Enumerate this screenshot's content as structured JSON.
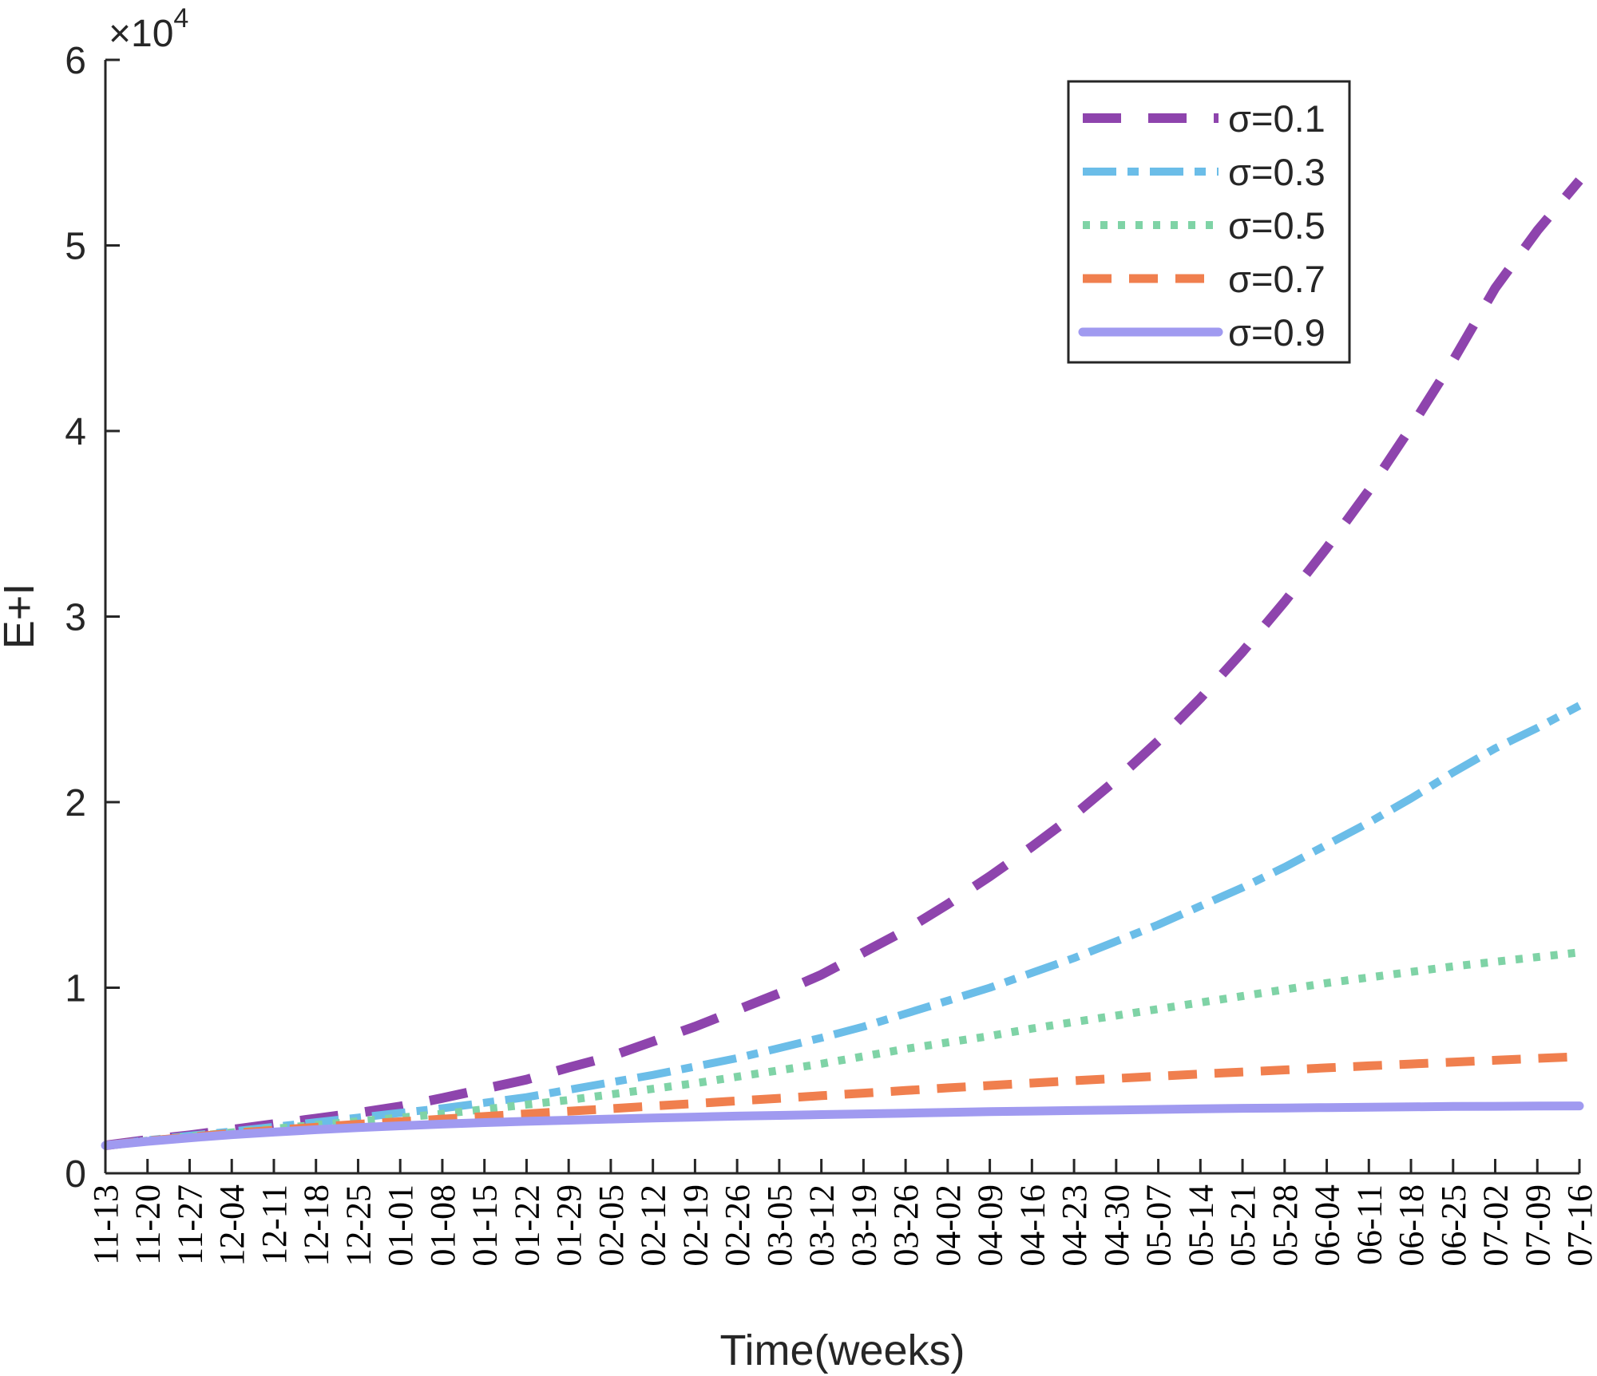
{
  "chart_data": {
    "type": "line",
    "xlabel": "Time(weeks)",
    "ylabel": "E+I",
    "y_multiplier": {
      "prefix": "×10",
      "exponent": "4"
    },
    "ylim": [
      0,
      60000
    ],
    "yticks": [
      0,
      10000,
      20000,
      30000,
      40000,
      50000,
      60000
    ],
    "ytick_labels": [
      "0",
      "1",
      "2",
      "3",
      "4",
      "5",
      "6"
    ],
    "categories": [
      "11-13",
      "11-20",
      "11-27",
      "12-04",
      "12-11",
      "12-18",
      "12-25",
      "01-01",
      "01-08",
      "01-15",
      "01-22",
      "01-29",
      "02-05",
      "02-12",
      "02-19",
      "02-26",
      "03-05",
      "03-12",
      "03-19",
      "03-26",
      "04-02",
      "04-09",
      "04-16",
      "04-23",
      "04-30",
      "05-07",
      "05-14",
      "05-21",
      "05-28",
      "06-04",
      "06-11",
      "06-18",
      "06-25",
      "07-02",
      "07-09",
      "07-16"
    ],
    "legend_position": "top-right",
    "grid": false,
    "series": [
      {
        "name": "σ=0.1",
        "color": "#8e44ad",
        "style": "dash-long",
        "values": [
          1500,
          1800,
          2050,
          2350,
          2650,
          2950,
          3250,
          3600,
          4050,
          4550,
          5050,
          5700,
          6300,
          7100,
          7900,
          8800,
          9700,
          10700,
          11900,
          13100,
          14500,
          16000,
          17600,
          19300,
          21200,
          23300,
          25600,
          28100,
          30800,
          33700,
          36800,
          40200,
          43800,
          47700,
          50800,
          53500
        ]
      },
      {
        "name": "σ=0.3",
        "color": "#6bbde8",
        "style": "dash-dot",
        "values": [
          1500,
          1780,
          2020,
          2250,
          2500,
          2750,
          3000,
          3250,
          3500,
          3800,
          4100,
          4500,
          4900,
          5300,
          5750,
          6200,
          6750,
          7300,
          7900,
          8600,
          9300,
          10000,
          10800,
          11600,
          12500,
          13400,
          14400,
          15400,
          16500,
          17700,
          18900,
          20200,
          21600,
          22900,
          24000,
          25200
        ]
      },
      {
        "name": "σ=0.5",
        "color": "#7fd3a6",
        "style": "dot",
        "values": [
          1500,
          1760,
          1980,
          2200,
          2400,
          2600,
          2800,
          3000,
          3200,
          3450,
          3700,
          3950,
          4250,
          4550,
          4850,
          5200,
          5550,
          5900,
          6300,
          6700,
          7050,
          7400,
          7800,
          8150,
          8500,
          8850,
          9200,
          9550,
          9900,
          10250,
          10550,
          10850,
          11150,
          11400,
          11650,
          11900
        ]
      },
      {
        "name": "σ=0.7",
        "color": "#f07f4e",
        "style": "dash",
        "values": [
          1500,
          1740,
          1950,
          2150,
          2320,
          2480,
          2640,
          2780,
          2920,
          3060,
          3200,
          3340,
          3480,
          3620,
          3760,
          3900,
          4040,
          4180,
          4320,
          4460,
          4600,
          4730,
          4860,
          4990,
          5110,
          5230,
          5350,
          5460,
          5570,
          5680,
          5790,
          5890,
          5990,
          6090,
          6190,
          6290
        ]
      },
      {
        "name": "σ=0.9",
        "color": "#a09af0",
        "style": "solid",
        "values": [
          1500,
          1720,
          1910,
          2080,
          2220,
          2350,
          2460,
          2560,
          2650,
          2730,
          2800,
          2860,
          2920,
          2980,
          3030,
          3080,
          3120,
          3160,
          3200,
          3240,
          3280,
          3320,
          3350,
          3380,
          3410,
          3440,
          3470,
          3500,
          3520,
          3540,
          3560,
          3580,
          3600,
          3610,
          3620,
          3630
        ]
      }
    ]
  }
}
